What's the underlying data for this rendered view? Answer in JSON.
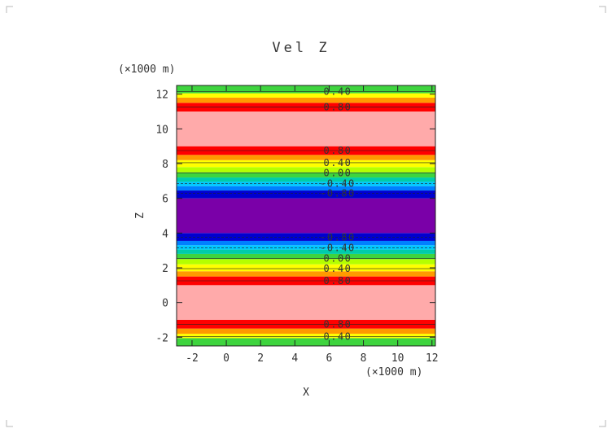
{
  "chart_data": {
    "type": "heatmap",
    "title": "Vel Z",
    "xlabel": "X",
    "ylabel": "Z",
    "x_unit": "(×1000 m)",
    "y_unit": "(×1000 m)",
    "xlim": [
      -2.9,
      12.2
    ],
    "ylim": [
      -2.5,
      12.5
    ],
    "x_ticks": [
      -2,
      0,
      2,
      4,
      6,
      8,
      10,
      12
    ],
    "y_ticks": [
      -2,
      0,
      2,
      4,
      6,
      8,
      10,
      12
    ],
    "colors": {
      "pink": "#ffaaaa",
      "red": "#ff0000",
      "orange": "#ff9a00",
      "yellow": "#ffff00",
      "lime": "#b4ff00",
      "green": "#3ed43e",
      "teal": "#00ccaa",
      "cyan": "#00c8ff",
      "blue": "#0080ff",
      "navy": "#0000d0",
      "purple": "#7a00a8"
    },
    "bands": [
      {
        "z0": -2.5,
        "z1": -2.05,
        "color": "green"
      },
      {
        "z0": -2.05,
        "z1": -1.8,
        "color": "yellow"
      },
      {
        "z0": -1.8,
        "z1": -1.5,
        "color": "orange"
      },
      {
        "z0": -1.5,
        "z1": -1.0,
        "color": "red"
      },
      {
        "z0": -1.0,
        "z1": 1.0,
        "color": "pink"
      },
      {
        "z0": 1.0,
        "z1": 1.5,
        "color": "red"
      },
      {
        "z0": 1.5,
        "z1": 1.8,
        "color": "orange"
      },
      {
        "z0": 1.8,
        "z1": 2.2,
        "color": "yellow"
      },
      {
        "z0": 2.2,
        "z1": 2.5,
        "color": "lime"
      },
      {
        "z0": 2.5,
        "z1": 2.8,
        "color": "green"
      },
      {
        "z0": 2.8,
        "z1": 3.05,
        "color": "teal"
      },
      {
        "z0": 3.05,
        "z1": 3.3,
        "color": "cyan"
      },
      {
        "z0": 3.3,
        "z1": 3.55,
        "color": "blue"
      },
      {
        "z0": 3.55,
        "z1": 4.0,
        "color": "navy"
      },
      {
        "z0": 4.0,
        "z1": 6.0,
        "color": "purple"
      },
      {
        "z0": 6.0,
        "z1": 6.45,
        "color": "navy"
      },
      {
        "z0": 6.45,
        "z1": 6.7,
        "color": "blue"
      },
      {
        "z0": 6.7,
        "z1": 6.95,
        "color": "cyan"
      },
      {
        "z0": 6.95,
        "z1": 7.2,
        "color": "teal"
      },
      {
        "z0": 7.2,
        "z1": 7.5,
        "color": "green"
      },
      {
        "z0": 7.5,
        "z1": 7.8,
        "color": "lime"
      },
      {
        "z0": 7.8,
        "z1": 8.2,
        "color": "yellow"
      },
      {
        "z0": 8.2,
        "z1": 8.5,
        "color": "orange"
      },
      {
        "z0": 8.5,
        "z1": 9.0,
        "color": "red"
      },
      {
        "z0": 9.0,
        "z1": 11.0,
        "color": "pink"
      },
      {
        "z0": 11.0,
        "z1": 11.5,
        "color": "red"
      },
      {
        "z0": 11.5,
        "z1": 11.8,
        "color": "orange"
      },
      {
        "z0": 11.8,
        "z1": 12.05,
        "color": "yellow"
      },
      {
        "z0": 12.05,
        "z1": 12.5,
        "color": "green"
      }
    ],
    "contour_labels": [
      {
        "z": 12.15,
        "text": "0.40"
      },
      {
        "z": 11.25,
        "text": "0.80"
      },
      {
        "z": 8.75,
        "text": "0.80"
      },
      {
        "z": 8.05,
        "text": "0.40"
      },
      {
        "z": 7.45,
        "text": "0.00"
      },
      {
        "z": 6.85,
        "text": "-0.40"
      },
      {
        "z": 6.3,
        "text": "-0.80"
      },
      {
        "z": 3.75,
        "text": "-0.80"
      },
      {
        "z": 3.15,
        "text": "-0.40"
      },
      {
        "z": 2.55,
        "text": "0.00"
      },
      {
        "z": 1.95,
        "text": "0.40"
      },
      {
        "z": 1.25,
        "text": "0.80"
      },
      {
        "z": -1.25,
        "text": "0.80"
      },
      {
        "z": -1.95,
        "text": "0.40"
      }
    ],
    "contour_label_x": 6.5,
    "grid": false,
    "legend": "none"
  }
}
